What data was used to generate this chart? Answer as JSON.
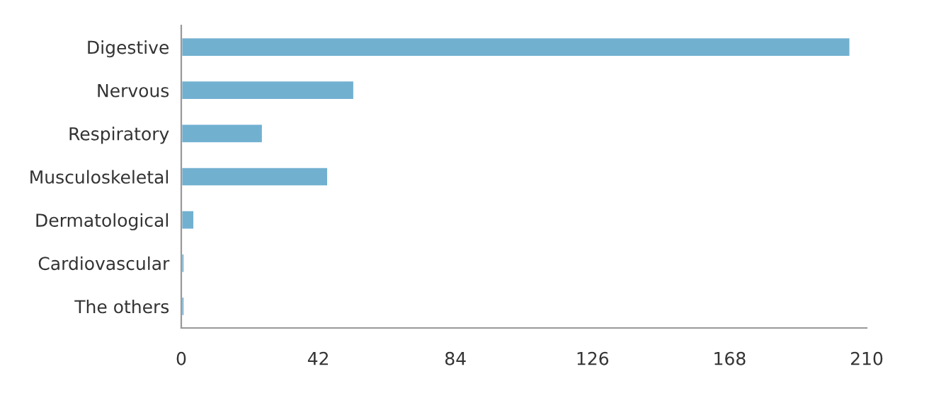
{
  "chart_data": {
    "type": "bar",
    "orientation": "horizontal",
    "categories": [
      "Digestive",
      "Nervous",
      "Respiratory",
      "Musculoskeletal",
      "Dermatological",
      "Cardiovascular",
      "The others"
    ],
    "values": [
      205,
      53,
      25,
      45,
      4,
      1,
      1
    ],
    "color": "#72b0d0",
    "xlim": [
      0,
      210
    ],
    "xticks": [
      0,
      42,
      84,
      126,
      168,
      210
    ],
    "grid": false,
    "legend": false
  }
}
